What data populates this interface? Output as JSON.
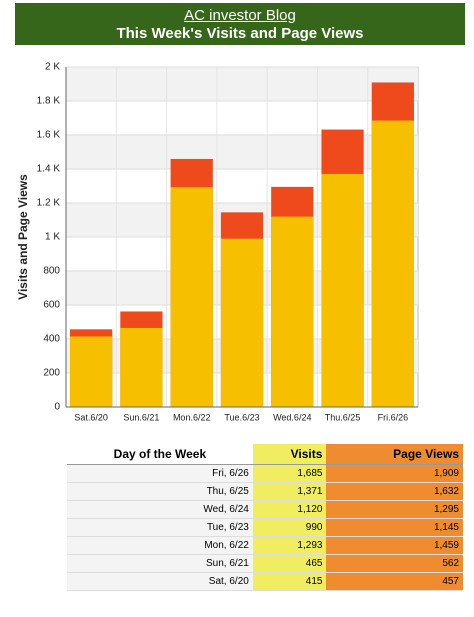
{
  "header": {
    "link": "AC investor Blog"
  },
  "chart_data": {
    "type": "bar",
    "title": "This Week's Visits and Page Views",
    "y_label": "Visits and Page Views",
    "categories": [
      "Sat.6/20",
      "Sun.6/21",
      "Mon.6/22",
      "Tue.6/23",
      "Wed.6/24",
      "Thu.6/25",
      "Fri.6/26"
    ],
    "series": [
      {
        "name": "Page Views",
        "color": "#ee4a1c",
        "values": [
          457,
          562,
          1459,
          1145,
          1295,
          1632,
          1909
        ]
      },
      {
        "name": "Visits",
        "color": "#f6c000",
        "values": [
          415,
          465,
          1293,
          990,
          1120,
          1371,
          1685
        ]
      }
    ],
    "ylim": [
      0,
      2000
    ],
    "yticks": [
      0,
      200,
      400,
      600,
      800,
      {
        "value": 1000,
        "label": "1 K"
      },
      {
        "value": 1200,
        "label": "1.2 K"
      },
      {
        "value": 1400,
        "label": "1.4 K"
      },
      {
        "value": 1600,
        "label": "1.6 K"
      },
      {
        "value": 1800,
        "label": "1.8 K"
      },
      {
        "value": 2000,
        "label": "2 K"
      }
    ],
    "grid": true
  },
  "table": {
    "header": [
      "Day of the Week",
      "Visits",
      "Page Views"
    ],
    "rows": [
      [
        "Fri, 6/26",
        "1,685",
        "1,909"
      ],
      [
        "Thu, 6/25",
        "1,371",
        "1,632"
      ],
      [
        "Wed, 6/24",
        "1,120",
        "1,295"
      ],
      [
        "Tue, 6/23",
        "990",
        "1,145"
      ],
      [
        "Mon, 6/22",
        "1,293",
        "1,459"
      ],
      [
        "Sun, 6/21",
        "465",
        "562"
      ],
      [
        "Sat, 6/20",
        "415",
        "457"
      ]
    ]
  }
}
